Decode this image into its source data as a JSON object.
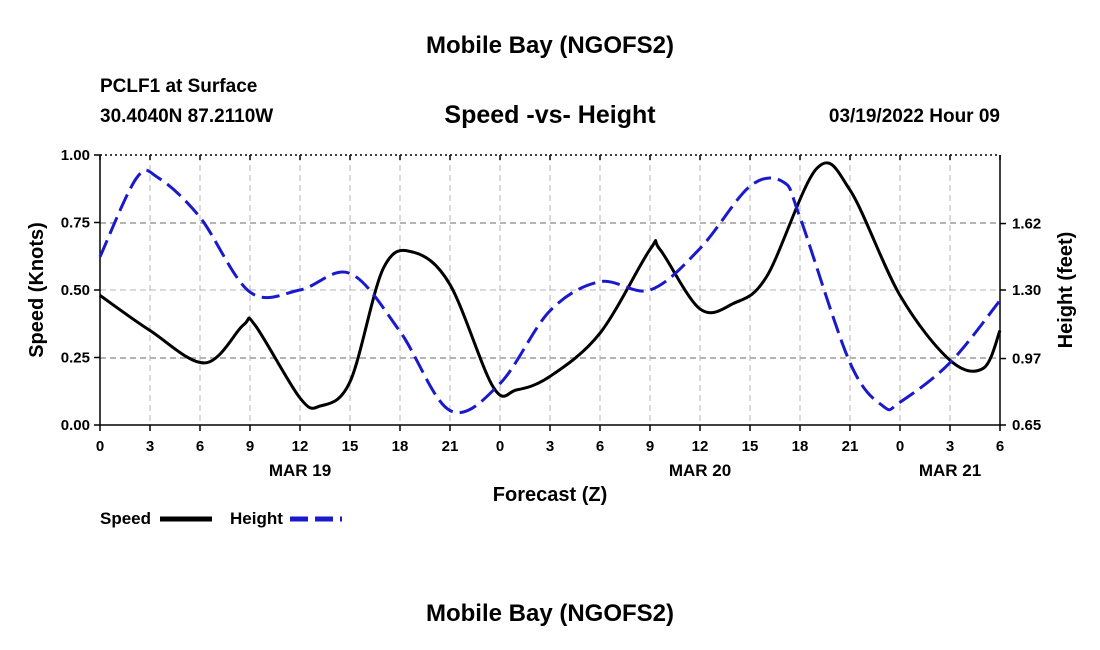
{
  "page": {
    "title": "Mobile Bay (NGOFS2)",
    "station": "PCLF1 at Surface",
    "coords": "30.4040N  87.2110W",
    "timestamp": "03/19/2022 Hour 09",
    "bottom_title": "Mobile Bay (NGOFS2)"
  },
  "chart_data": {
    "type": "line",
    "title": "Speed -vs- Height",
    "xlabel": "Forecast (Z)",
    "ylabel": "Speed (Knots)",
    "y2label": "Height (feet)",
    "x_ticks": [
      "0",
      "3",
      "6",
      "9",
      "12",
      "15",
      "18",
      "21",
      "0",
      "3",
      "6",
      "9",
      "12",
      "15",
      "18",
      "21",
      "0",
      "3",
      "6"
    ],
    "x_hours": [
      0,
      3,
      6,
      9,
      12,
      15,
      18,
      21,
      24,
      27,
      30,
      33,
      36,
      39,
      42,
      45,
      48,
      51,
      54
    ],
    "date_labels": [
      {
        "hour": 12,
        "label": "MAR 19"
      },
      {
        "hour": 36,
        "label": "MAR 20"
      },
      {
        "hour": 51,
        "label": "MAR 21"
      }
    ],
    "xlim": [
      0,
      54
    ],
    "ylim": [
      0,
      1.0
    ],
    "y_ticks": [
      "0.00",
      "0.25",
      "0.50",
      "0.75",
      "1.00"
    ],
    "y_tick_values": [
      0,
      0.25,
      0.5,
      0.75,
      1.0
    ],
    "y2lim": [
      0.65,
      1.95
    ],
    "y2_ticks": [
      "0.65",
      "0.97",
      "1.30",
      "1.62"
    ],
    "y2_tick_values": [
      0.65,
      0.97,
      1.3,
      1.62
    ],
    "grid": true,
    "legend": "bottom-left",
    "series": [
      {
        "name": "Speed",
        "axis": "left",
        "color": "#000000",
        "dash": "solid",
        "x": [
          0,
          3,
          6.3,
          8.6,
          9.3,
          12,
          13.2,
          15,
          17,
          18.8,
          21,
          23.6,
          25,
          27,
          30,
          33,
          33.6,
          36,
          38,
          40,
          43,
          45,
          48,
          51,
          53,
          54
        ],
        "y": [
          0.48,
          0.35,
          0.23,
          0.37,
          0.37,
          0.1,
          0.07,
          0.16,
          0.58,
          0.64,
          0.52,
          0.14,
          0.13,
          0.18,
          0.34,
          0.65,
          0.65,
          0.43,
          0.45,
          0.55,
          0.95,
          0.87,
          0.48,
          0.24,
          0.21,
          0.35
        ]
      },
      {
        "name": "Height",
        "axis": "right",
        "color": "#1a1acc",
        "dash": "dashed",
        "x": [
          0,
          2.2,
          3.5,
          6,
          9,
          12,
          15,
          18,
          21,
          24,
          27,
          30,
          33,
          36,
          39,
          41,
          42,
          45,
          47,
          48,
          51,
          54
        ],
        "y": [
          1.46,
          1.84,
          1.84,
          1.65,
          1.29,
          1.3,
          1.38,
          1.1,
          0.72,
          0.85,
          1.2,
          1.34,
          1.3,
          1.5,
          1.8,
          1.82,
          1.65,
          0.95,
          0.74,
          0.76,
          0.95,
          1.25
        ]
      }
    ]
  }
}
